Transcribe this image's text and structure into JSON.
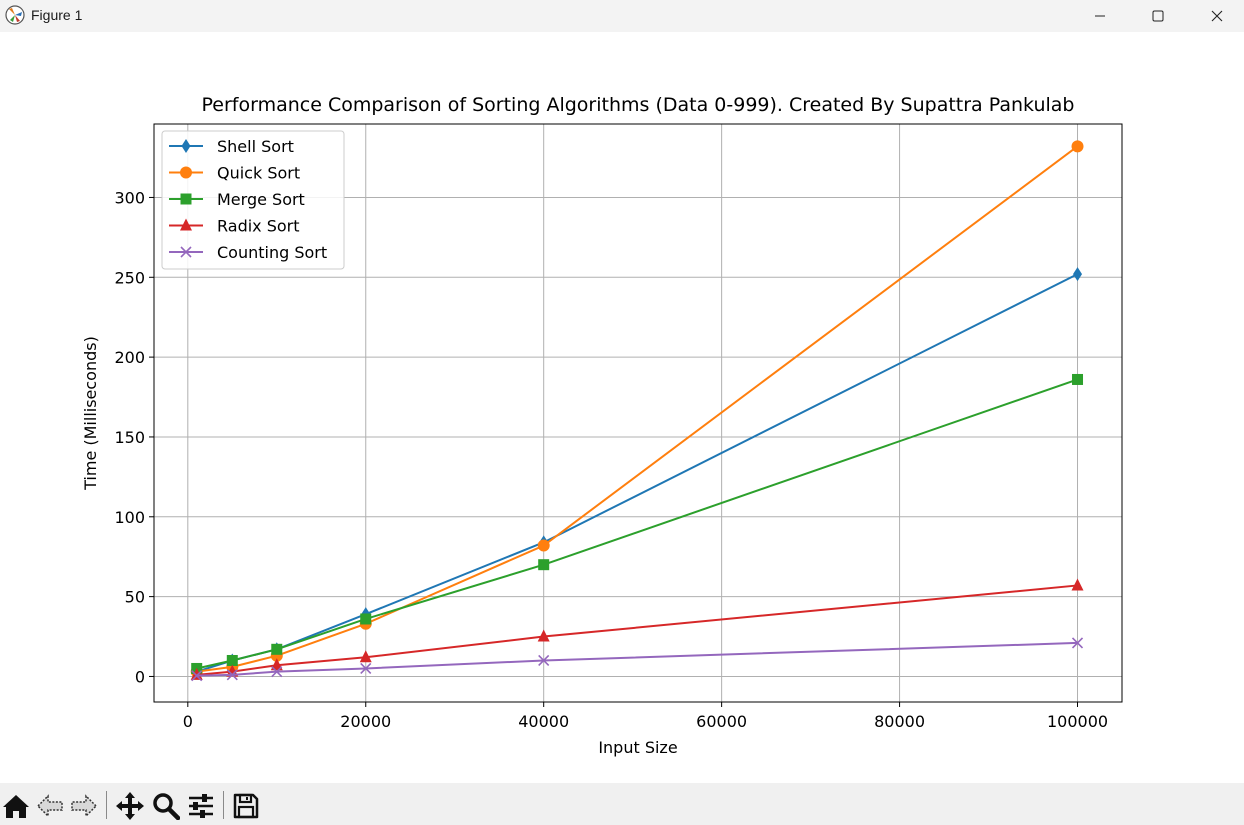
{
  "window": {
    "title": "Figure 1",
    "controls": {
      "minimize": "minimize-icon",
      "maximize": "maximize-icon",
      "close": "close-icon"
    }
  },
  "toolbar": {
    "buttons": [
      "home-icon",
      "back-arrow-icon",
      "forward-arrow-icon",
      "pan-icon",
      "zoom-icon",
      "configure-subplots-icon",
      "save-icon"
    ]
  },
  "chart_data": {
    "type": "line",
    "title": "Performance Comparison of Sorting Algorithms (Data 0-999). Created By Supattra Pankulab",
    "xlabel": "Input Size",
    "ylabel": "Time (Milliseconds)",
    "x": [
      1000,
      5000,
      10000,
      20000,
      40000,
      100000
    ],
    "xlim": [
      -3800,
      105000
    ],
    "ylim": [
      -16,
      346
    ],
    "xticks": [
      0,
      20000,
      40000,
      60000,
      80000,
      100000
    ],
    "yticks": [
      0,
      50,
      100,
      150,
      200,
      250,
      300
    ],
    "grid": true,
    "legend_position": "upper left",
    "series": [
      {
        "name": "Shell Sort",
        "color": "#1f77b4",
        "marker": "thin_diamond",
        "values": [
          3,
          10,
          17,
          39,
          84,
          252
        ]
      },
      {
        "name": "Quick Sort",
        "color": "#ff7f0e",
        "marker": "circle",
        "values": [
          3,
          6,
          13,
          33,
          82,
          332
        ]
      },
      {
        "name": "Merge Sort",
        "color": "#2ca02c",
        "marker": "square",
        "values": [
          5,
          10,
          17,
          36,
          70,
          186
        ]
      },
      {
        "name": "Radix Sort",
        "color": "#d62728",
        "marker": "triangle",
        "values": [
          1,
          3,
          7,
          12,
          25,
          57
        ]
      },
      {
        "name": "Counting Sort",
        "color": "#9467bd",
        "marker": "x",
        "values": [
          0.5,
          1,
          3,
          5,
          10,
          21
        ]
      }
    ]
  }
}
